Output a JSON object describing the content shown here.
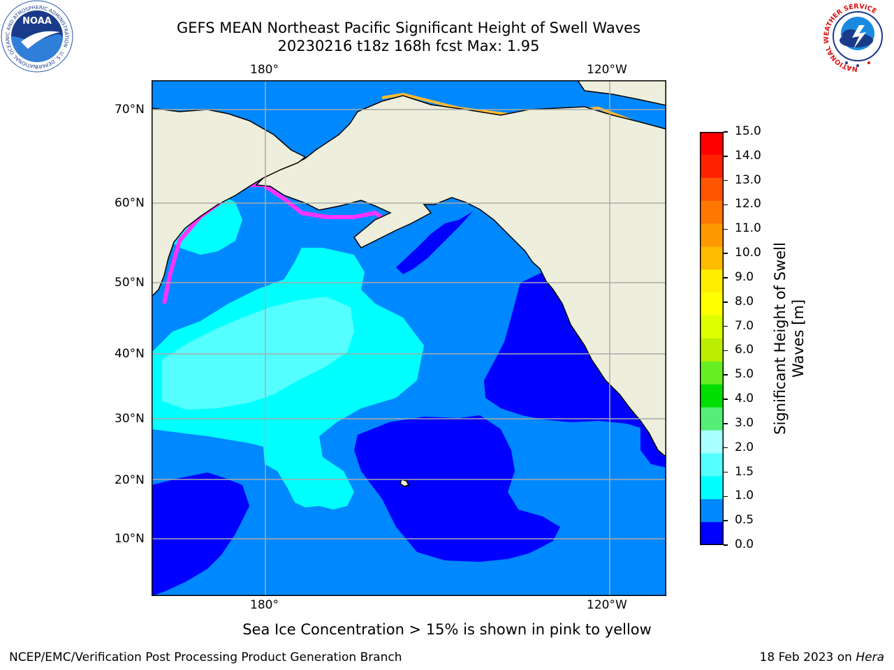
{
  "title": {
    "line1": "GEFS MEAN Northeast Pacific Significant Height of Swell Waves",
    "line2": "20230216 t18z 168h fcst   Max: 1.95"
  },
  "map": {
    "lon_labels": [
      "180°",
      "120°W"
    ],
    "lat_labels": [
      "70°N",
      "60°N",
      "50°N",
      "40°N",
      "30°N",
      "20°N",
      "10°N"
    ]
  },
  "colorbar": {
    "title": "Significant Height of Swell Waves [m]",
    "ticks": [
      "15.0",
      "14.0",
      "13.0",
      "12.0",
      "11.0",
      "10.0",
      "9.0",
      "8.0",
      "7.0",
      "6.0",
      "5.0",
      "4.0",
      "3.0",
      "2.0",
      "1.5",
      "1.0",
      "0.5",
      "0.0"
    ],
    "colors": [
      "#ff0000",
      "#ff2200",
      "#ff5500",
      "#ff7700",
      "#ff9900",
      "#ffbb00",
      "#ffee00",
      "#ffff00",
      "#ddff00",
      "#bbee00",
      "#66ee22",
      "#00dd00",
      "#55ee77",
      "#aaffff",
      "#55ffff",
      "#00ffff",
      "#0088ff",
      "#0000ff"
    ]
  },
  "note": "Sea Ice Concentration > 15% is shown in pink to yellow",
  "footer": {
    "left": "NCEP/EMC/Verification Post Processing Product Generation Branch",
    "right_date": "18 Feb 2023 on ",
    "right_host": "Hera"
  },
  "logos": {
    "noaa_text": "NOAA",
    "noaa_ring": "NATIONAL OCEANIC AND ATMOSPHERIC ADMINISTRATION · U.S. DEPARTMENT OF COMMERCE",
    "nws_ring": "NATIONAL WEATHER SERVICE"
  },
  "colors": {
    "land": "#eeeedc",
    "ocean_low": "#0000ff",
    "ocean_mid": "#0088ff",
    "ocean_cyan": "#00ffff",
    "ocean_light": "#55ffff",
    "sea_ice": "#ff33ff"
  }
}
